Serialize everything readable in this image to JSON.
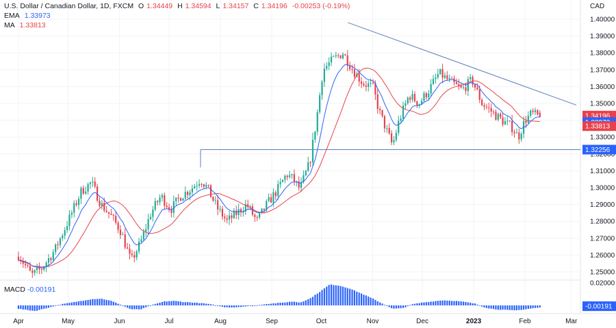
{
  "header": {
    "symbol": "U.S. Dollar / Canadian Dollar, 1D, FXCM",
    "o_label": "O",
    "o_value": "1.34449",
    "h_label": "H",
    "h_value": "1.34594",
    "l_label": "L",
    "l_value": "1.34157",
    "c_label": "C",
    "c_value": "1.34196",
    "change": "-0.00253 (-0.19%)",
    "ema_label": "EMA",
    "ema_value": "1.33973",
    "ma_label": "MA",
    "ma_value": "1.33813",
    "macd_label": "MACD",
    "macd_value": "-0.00191",
    "currency": "CAD"
  },
  "colors": {
    "up": "#22ab94",
    "down": "#e8414b",
    "ema": "#2962ff",
    "ma": "#e8414b",
    "trend": "#5b7fb7",
    "macd": "#2962ff",
    "grid": "#f0f3fa"
  },
  "chart_data": {
    "type": "candlestick",
    "y_axis": {
      "ticks": [
        "1.40000",
        "1.39000",
        "1.38000",
        "1.37000",
        "1.36000",
        "1.35000",
        "1.34000",
        "1.33000",
        "1.32000",
        "1.31000",
        "1.30000",
        "1.29000",
        "1.28000",
        "1.27000",
        "1.26000",
        "1.25000"
      ],
      "range": [
        1.245,
        1.402
      ]
    },
    "x_axis": {
      "months": [
        {
          "label": "Apr",
          "day": 0,
          "bold": false
        },
        {
          "label": "May",
          "day": 30,
          "bold": false
        },
        {
          "label": "Jun",
          "day": 61,
          "bold": false
        },
        {
          "label": "Jul",
          "day": 91,
          "bold": false
        },
        {
          "label": "Aug",
          "day": 122,
          "bold": false
        },
        {
          "label": "Sep",
          "day": 153,
          "bold": false
        },
        {
          "label": "Oct",
          "day": 183,
          "bold": false
        },
        {
          "label": "Nov",
          "day": 214,
          "bold": false
        },
        {
          "label": "Dec",
          "day": 244,
          "bold": false
        },
        {
          "label": "2023",
          "day": 275,
          "bold": true
        },
        {
          "label": "Feb",
          "day": 306,
          "bold": false
        },
        {
          "label": "Mar",
          "day": 334,
          "bold": false
        }
      ],
      "last_day": 315
    },
    "price_path": [
      [
        0,
        1.26
      ],
      [
        8,
        1.248
      ],
      [
        14,
        1.252
      ],
      [
        22,
        1.263
      ],
      [
        30,
        1.28
      ],
      [
        38,
        1.298
      ],
      [
        44,
        1.303
      ],
      [
        50,
        1.29
      ],
      [
        56,
        1.283
      ],
      [
        62,
        1.274
      ],
      [
        68,
        1.256
      ],
      [
        74,
        1.268
      ],
      [
        80,
        1.285
      ],
      [
        86,
        1.295
      ],
      [
        92,
        1.287
      ],
      [
        98,
        1.295
      ],
      [
        104,
        1.299
      ],
      [
        110,
        1.305
      ],
      [
        114,
        1.3
      ],
      [
        120,
        1.288
      ],
      [
        126,
        1.28
      ],
      [
        132,
        1.285
      ],
      [
        138,
        1.29
      ],
      [
        144,
        1.28
      ],
      [
        150,
        1.29
      ],
      [
        156,
        1.298
      ],
      [
        162,
        1.308
      ],
      [
        166,
        1.305
      ],
      [
        170,
        1.299
      ],
      [
        176,
        1.315
      ],
      [
        180,
        1.34
      ],
      [
        184,
        1.37
      ],
      [
        190,
        1.376
      ],
      [
        196,
        1.38
      ],
      [
        202,
        1.37
      ],
      [
        208,
        1.362
      ],
      [
        214,
        1.36
      ],
      [
        218,
        1.345
      ],
      [
        222,
        1.335
      ],
      [
        226,
        1.325
      ],
      [
        230,
        1.34
      ],
      [
        236,
        1.355
      ],
      [
        242,
        1.35
      ],
      [
        248,
        1.358
      ],
      [
        254,
        1.368
      ],
      [
        262,
        1.362
      ],
      [
        268,
        1.358
      ],
      [
        274,
        1.364
      ],
      [
        280,
        1.35
      ],
      [
        286,
        1.345
      ],
      [
        292,
        1.34
      ],
      [
        298,
        1.336
      ],
      [
        302,
        1.33
      ],
      [
        306,
        1.34
      ],
      [
        310,
        1.344
      ],
      [
        315,
        1.34196
      ]
    ],
    "candles": {
      "count": 226,
      "first_open": 1.259,
      "last": {
        "open": 1.34449,
        "high": 1.34594,
        "low": 1.34157,
        "close": 1.34196
      }
    },
    "indicators": {
      "ema": {
        "name": "EMA",
        "last": 1.33973
      },
      "ma": {
        "name": "MA",
        "last": 1.33813
      }
    },
    "trendline": {
      "from": {
        "day": 199,
        "price": 1.398
      },
      "to": {
        "day": 337,
        "price": 1.349
      }
    },
    "support": {
      "from_day": 110,
      "price": 1.32256
    },
    "price_tags": [
      {
        "label": "1.34196",
        "price": 1.34196,
        "color": "#e8414b"
      },
      {
        "label": "1.33973",
        "price": 1.33973,
        "color": "#2962ff"
      },
      {
        "label": "1.33813",
        "price": 1.33813,
        "color": "#e8414b"
      },
      {
        "label": "1.32256",
        "price": 1.32256,
        "color": "#2962ff"
      }
    ],
    "macd": {
      "tick": "0.02000",
      "last_label": "-0.00191",
      "last": -0.00191,
      "range": [
        -0.0065,
        0.02
      ],
      "points": [
        [
          0,
          -0.003
        ],
        [
          10,
          -0.005
        ],
        [
          18,
          -0.002
        ],
        [
          26,
          0.001
        ],
        [
          34,
          0.003
        ],
        [
          44,
          0.0055
        ],
        [
          50,
          0.006
        ],
        [
          56,
          0.004
        ],
        [
          62,
          0.0005
        ],
        [
          68,
          -0.0035
        ],
        [
          74,
          -0.0035
        ],
        [
          80,
          0.0
        ],
        [
          88,
          0.0035
        ],
        [
          94,
          0.004
        ],
        [
          100,
          0.003
        ],
        [
          106,
          0.0025
        ],
        [
          112,
          0.0018
        ],
        [
          118,
          0.0005
        ],
        [
          124,
          -0.0015
        ],
        [
          130,
          -0.0018
        ],
        [
          136,
          -0.001
        ],
        [
          142,
          -0.0005
        ],
        [
          148,
          0.001
        ],
        [
          154,
          0.0018
        ],
        [
          160,
          0.0025
        ],
        [
          166,
          0.0035
        ],
        [
          170,
          0.0025
        ],
        [
          176,
          0.006
        ],
        [
          182,
          0.012
        ],
        [
          188,
          0.0185
        ],
        [
          194,
          0.0175
        ],
        [
          200,
          0.015
        ],
        [
          208,
          0.01
        ],
        [
          214,
          0.006
        ],
        [
          220,
          0.0015
        ],
        [
          226,
          -0.003
        ],
        [
          232,
          -0.0025
        ],
        [
          238,
          0.001
        ],
        [
          244,
          0.0025
        ],
        [
          250,
          0.0035
        ],
        [
          256,
          0.0045
        ],
        [
          264,
          0.004
        ],
        [
          270,
          0.003
        ],
        [
          276,
          0.0015
        ],
        [
          282,
          -0.002
        ],
        [
          288,
          -0.0035
        ],
        [
          294,
          -0.004
        ],
        [
          300,
          -0.0045
        ],
        [
          306,
          -0.0035
        ],
        [
          311,
          -0.0025
        ],
        [
          315,
          -0.00191
        ]
      ]
    }
  }
}
